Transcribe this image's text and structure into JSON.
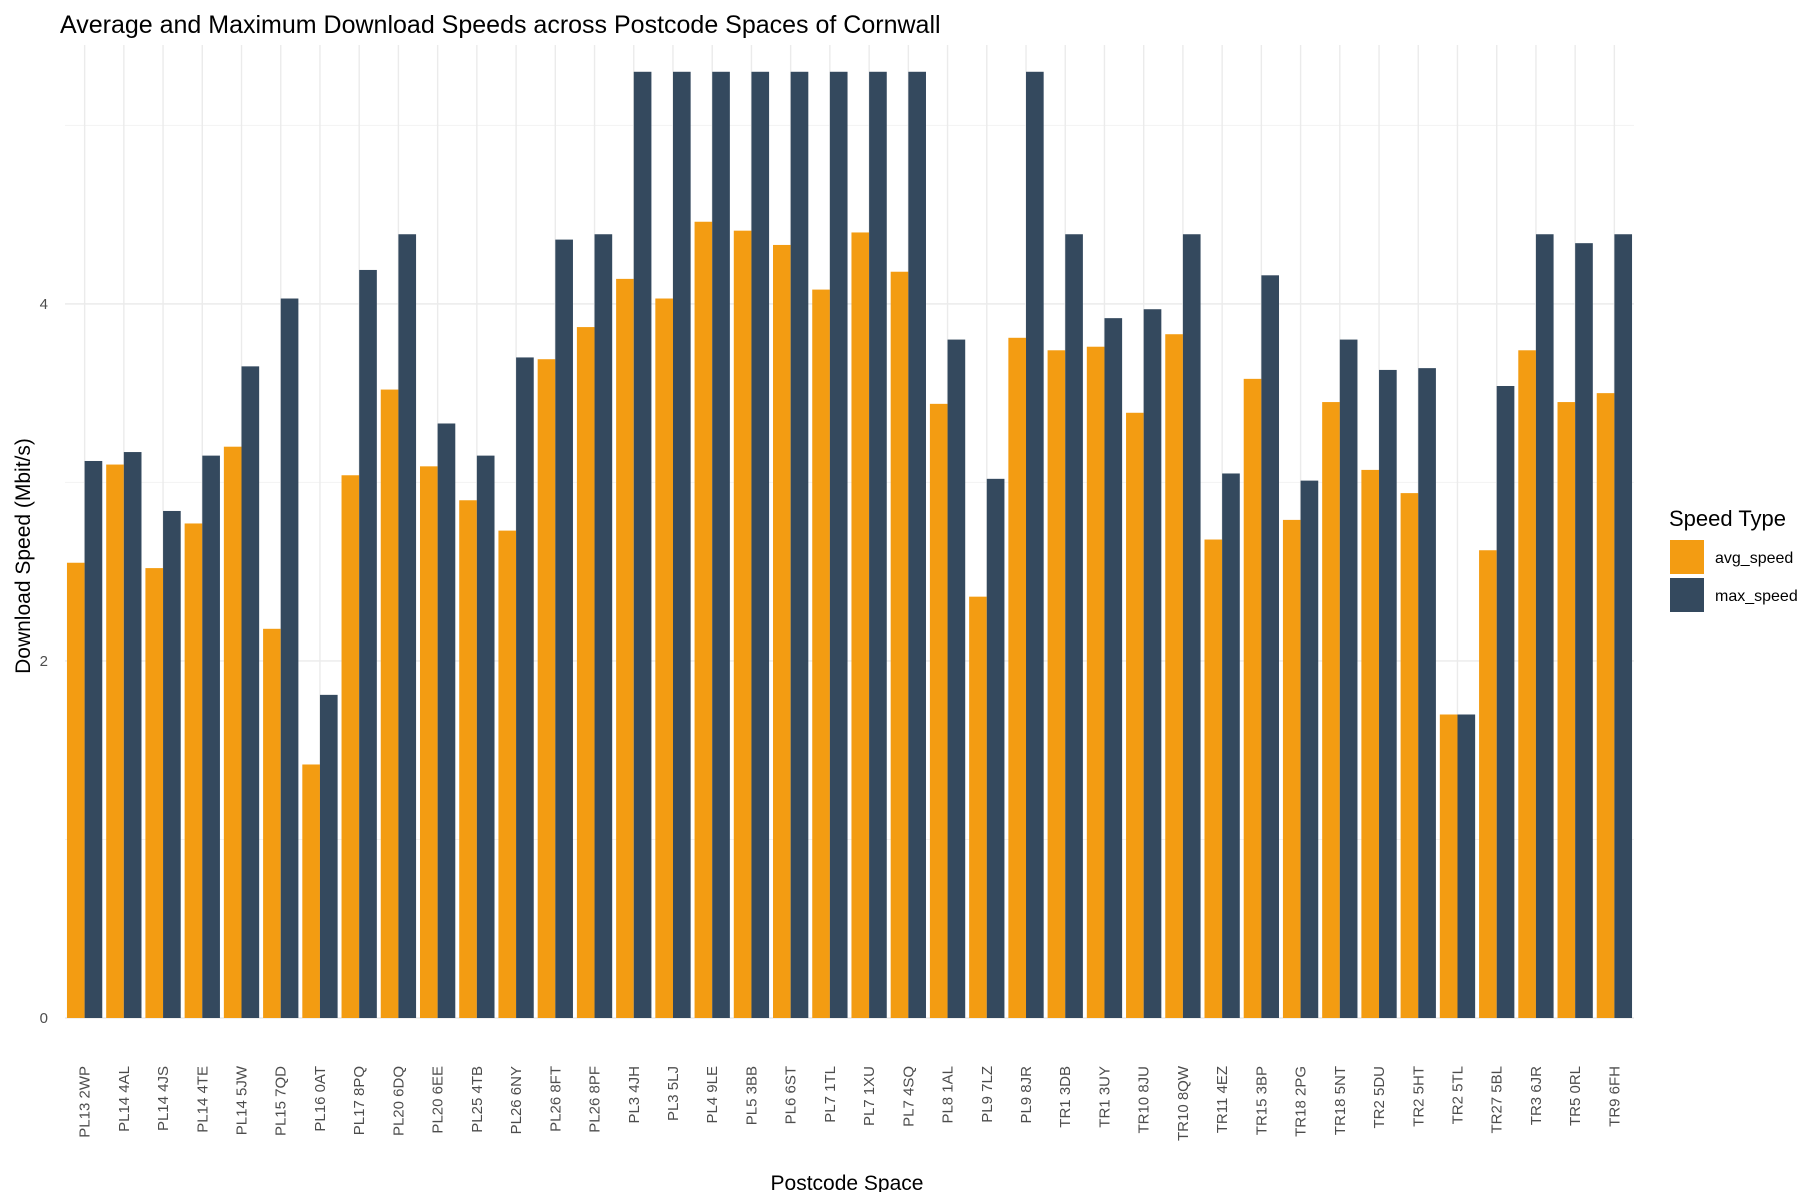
{
  "chart_data": {
    "type": "bar",
    "title": "Average and Maximum Download Speeds across Postcode Spaces of Cornwall",
    "xlabel": "Postcode Space",
    "ylabel": "Download Speed (Mbit/s)",
    "ylim": [
      0,
      5.45
    ],
    "y_ticks": [
      0,
      2,
      4
    ],
    "y_tick_labels": [
      "0",
      "2",
      "4"
    ],
    "grid": true,
    "legend": {
      "title": "Speed Type",
      "placement": "right"
    },
    "categories": [
      "PL13 2WP",
      "PL14 4AL",
      "PL14 4JS",
      "PL14 4TE",
      "PL14 5JW",
      "PL15 7QD",
      "PL16 0AT",
      "PL17 8PQ",
      "PL20 6DQ",
      "PL20 6EE",
      "PL25 4TB",
      "PL26 6NY",
      "PL26 8FT",
      "PL26 8PF",
      "PL3 4JH",
      "PL3 5LJ",
      "PL4 9LE",
      "PL5 3BB",
      "PL6 6ST",
      "PL7 1TL",
      "PL7 1XU",
      "PL7 4SQ",
      "PL8 1AL",
      "PL9 7LZ",
      "PL9 8JR",
      "TR1 3DB",
      "TR1 3UY",
      "TR10 8JU",
      "TR10 8QW",
      "TR11 4EZ",
      "TR15 3BP",
      "TR18 2PG",
      "TR18 5NT",
      "TR2 5DU",
      "TR2 5HT",
      "TR2 5TL",
      "TR27 5BL",
      "TR3 6JR",
      "TR5 0RL",
      "TR9 6FH"
    ],
    "series": [
      {
        "name": "avg_speed",
        "color": "#F39C12",
        "values": [
          2.55,
          3.1,
          2.52,
          2.77,
          3.2,
          2.18,
          1.42,
          3.04,
          3.52,
          3.09,
          2.9,
          2.73,
          3.69,
          3.87,
          4.14,
          4.03,
          4.46,
          4.41,
          4.33,
          4.08,
          4.4,
          4.18,
          3.44,
          2.36,
          3.81,
          3.74,
          3.76,
          3.39,
          3.83,
          2.68,
          3.58,
          2.79,
          3.45,
          3.07,
          2.94,
          1.7,
          2.62,
          3.74,
          3.45,
          3.5
        ]
      },
      {
        "name": "max_speed",
        "color": "#34495E",
        "values": [
          3.12,
          3.17,
          2.84,
          3.15,
          3.65,
          4.03,
          1.81,
          4.19,
          4.39,
          3.33,
          3.15,
          3.7,
          4.36,
          4.39,
          5.3,
          5.3,
          5.3,
          5.3,
          5.3,
          5.3,
          5.3,
          5.3,
          3.8,
          3.02,
          5.3,
          4.39,
          3.92,
          3.97,
          4.39,
          3.05,
          4.16,
          3.01,
          3.8,
          3.63,
          3.64,
          1.7,
          3.54,
          4.39,
          4.34,
          4.39
        ]
      }
    ]
  }
}
